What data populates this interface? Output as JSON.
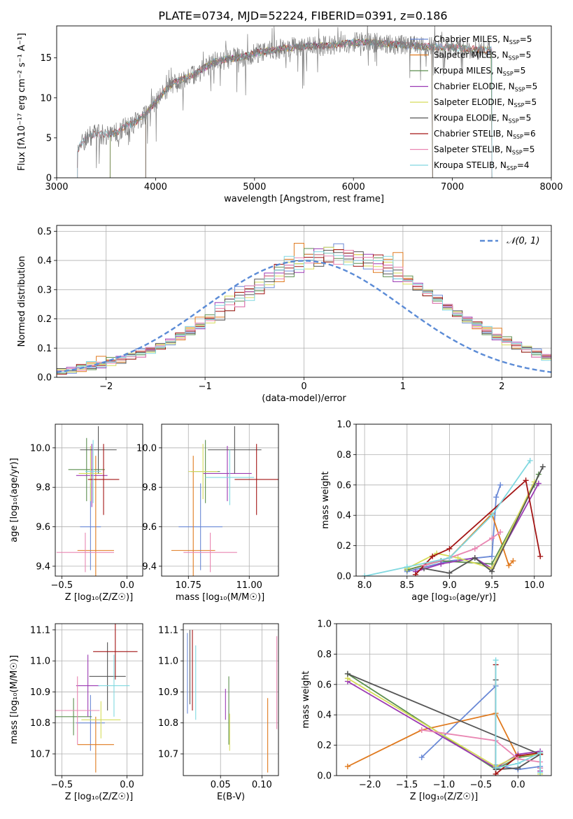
{
  "figure_title": "PLATE=0734, MJD=52224, FIBERID=0391, z=0.186",
  "palette": [
    "#6a89d6",
    "#e07a1f",
    "#5c8f4f",
    "#9b3ab3",
    "#d6dc5a",
    "#555555",
    "#a31515",
    "#e986b2",
    "#80d8e0"
  ],
  "chart_data": [
    {
      "id": "spectrum",
      "type": "line",
      "title": "PLATE=0734, MJD=52224, FIBERID=0391, z=0.186",
      "xlabel": "wavelength [Angstrom, rest frame]",
      "ylabel": "Flux [fλ10⁻¹⁷ erg cm⁻² s⁻¹ A⁻¹]",
      "xlim": [
        3000,
        8000
      ],
      "ylim": [
        0,
        19
      ],
      "xticks": [
        "3000",
        "4000",
        "5000",
        "6000",
        "7000",
        "8000"
      ],
      "yticks": [
        "0",
        "5",
        "10",
        "15"
      ],
      "grid": false,
      "legend_position": "top-right",
      "observed_spectrum": {
        "color": "#7f7f7f",
        "x": [
          3210,
          3260,
          3300,
          3400,
          3500,
          3600,
          3700,
          3800,
          3900,
          4000,
          4100,
          4200,
          4300,
          4400,
          4500,
          4600,
          4700,
          4800,
          4900,
          5000,
          5100,
          5200,
          5300,
          5400,
          5500,
          5600,
          5700,
          5800,
          5900,
          6000,
          6100,
          6200,
          6300,
          6400,
          6500,
          6600,
          6700,
          6800,
          6900,
          7000,
          7100,
          7200,
          7300,
          7400
        ],
        "y": [
          3.5,
          4.5,
          5.0,
          5.5,
          5.4,
          5.6,
          6.5,
          7.0,
          8.0,
          9.5,
          11.0,
          12.0,
          12.5,
          13.0,
          13.8,
          14.5,
          14.8,
          15.0,
          15.2,
          15.6,
          15.8,
          16.0,
          16.2,
          16.3,
          16.4,
          16.5,
          16.5,
          16.6,
          16.8,
          16.9,
          17.0,
          16.9,
          16.8,
          16.7,
          16.6,
          16.5,
          16.4,
          16.4,
          16.3,
          16.3,
          16.2,
          16.1,
          16.0,
          16.0
        ]
      },
      "series": [
        {
          "name": "Chabrier MILES, N_SSP=5",
          "x_start": 3540,
          "x_end": 7400
        },
        {
          "name": "Salpeter MILES, N_SSP=5",
          "x_start": 3540,
          "x_end": 7400
        },
        {
          "name": "Kroupa MILES, N_SSP=5",
          "x_start": 3540,
          "x_end": 7400
        },
        {
          "name": "Chabrier ELODIE, N_SSP=5",
          "x_start": 3900,
          "x_end": 6800
        },
        {
          "name": "Salpeter ELODIE, N_SSP=5",
          "x_start": 3900,
          "x_end": 6800
        },
        {
          "name": "Kroupa ELODIE, N_SSP=5",
          "x_start": 3900,
          "x_end": 6800
        },
        {
          "name": "Chabrier STELIB, N_SSP=6",
          "x_start": 3210,
          "x_end": 7400
        },
        {
          "name": "Salpeter STELIB, N_SSP=5",
          "x_start": 3210,
          "x_end": 7400
        },
        {
          "name": "Kroupa STELIB, N_SSP=4",
          "x_start": 3210,
          "x_end": 7400
        }
      ]
    },
    {
      "id": "residuals",
      "type": "bar",
      "xlabel": "(data-model)/error",
      "ylabel": "Normed distribution",
      "xlim": [
        -2.5,
        2.5
      ],
      "ylim": [
        0,
        0.52
      ],
      "xticks": [
        "−2",
        "−1",
        "0",
        "1",
        "2"
      ],
      "yticks": [
        "0.0",
        "0.1",
        "0.2",
        "0.3",
        "0.4",
        "0.5"
      ],
      "grid": true,
      "legend_position": "top-right",
      "reference_curve": {
        "name": "𝒩(0, 1)",
        "mean": 0,
        "sigma": 1,
        "color": "#5b8bd6"
      },
      "bin_edges_start": -2.5,
      "bin_width": 0.1,
      "gaussian_counts": [
        0.018,
        0.022,
        0.028,
        0.034,
        0.04,
        0.048,
        0.056,
        0.066,
        0.077,
        0.09,
        0.104,
        0.119,
        0.136,
        0.154,
        0.174,
        0.194,
        0.216,
        0.238,
        0.261,
        0.283,
        0.306,
        0.327,
        0.347,
        0.364,
        0.379,
        0.391,
        0.4,
        0.405,
        0.407,
        0.405,
        0.4,
        0.391,
        0.379,
        0.364,
        0.347,
        0.327,
        0.306,
        0.283,
        0.261,
        0.238,
        0.216,
        0.194,
        0.174,
        0.154,
        0.136,
        0.119,
        0.104,
        0.09,
        0.077,
        0.066
      ],
      "series_offsets": [
        [
          0.01,
          -0.02,
          0.02,
          0.0,
          -0.01,
          0.03,
          0.02,
          0.04,
          0.05,
          0.03
        ],
        [
          0.02,
          0.01,
          -0.02,
          0.04,
          0.08,
          0.03,
          -0.01,
          0.02,
          0.03,
          0.01
        ],
        [
          -0.01,
          0.02,
          0.03,
          -0.02,
          0.01,
          0.05,
          0.02,
          -0.01,
          0.0,
          0.02
        ],
        [
          0.0,
          0.03,
          0.01,
          0.02,
          -0.02,
          0.01,
          0.04,
          0.03,
          -0.02,
          0.01
        ],
        [
          0.02,
          -0.01,
          0.0,
          0.03,
          0.01,
          -0.02,
          0.02,
          0.04,
          0.01,
          -0.01
        ],
        [
          0.03,
          0.0,
          0.02,
          -0.01,
          0.02,
          0.01,
          -0.02,
          0.03,
          0.02,
          0.0
        ],
        [
          -0.02,
          0.02,
          0.04,
          0.01,
          0.0,
          0.02,
          0.01,
          -0.01,
          0.03,
          0.02
        ],
        [
          0.01,
          0.02,
          -0.01,
          0.02,
          0.03,
          0.0,
          0.02,
          0.01,
          -0.02,
          0.03
        ],
        [
          0.0,
          0.01,
          0.02,
          0.05,
          -0.01,
          0.01,
          0.03,
          0.02,
          0.01,
          -0.02
        ]
      ]
    },
    {
      "id": "age_vs_z",
      "type": "scatter",
      "xlabel": "Z [log₁₀(Z/Z☉)]",
      "ylabel": "age  [log₁₀(age/yr)]",
      "xlim": [
        -0.55,
        0.12
      ],
      "ylim": [
        9.35,
        10.12
      ],
      "xticks": [
        "−0.5",
        "0.0"
      ],
      "yticks": [
        "9.4",
        "9.6",
        "9.8",
        "10.0"
      ],
      "grid": true,
      "points": [
        {
          "x": -0.28,
          "xerr": 0.08,
          "y": 9.6,
          "yerr": 0.22
        },
        {
          "x": -0.24,
          "xerr": 0.14,
          "y": 9.48,
          "yerr": 0.48
        },
        {
          "x": -0.31,
          "xerr": 0.14,
          "y": 9.89,
          "yerr": 0.16
        },
        {
          "x": -0.27,
          "xerr": 0.12,
          "y": 9.86,
          "yerr": 0.16
        },
        {
          "x": -0.28,
          "xerr": 0.09,
          "y": 9.87,
          "yerr": 0.14
        },
        {
          "x": -0.22,
          "xerr": 0.14,
          "y": 9.99,
          "yerr": 0.12
        },
        {
          "x": -0.18,
          "xerr": 0.12,
          "y": 9.84,
          "yerr": 0.18
        },
        {
          "x": -0.32,
          "xerr": 0.22,
          "y": 9.47,
          "yerr": 0.1
        },
        {
          "x": -0.26,
          "xerr": 0.06,
          "y": 9.88,
          "yerr": 0.16
        }
      ]
    },
    {
      "id": "age_vs_mass",
      "type": "scatter",
      "xlabel": "mass [log₁₀(M/M☉)]",
      "ylabel": "",
      "xlim": [
        10.64,
        11.12
      ],
      "ylim": [
        9.35,
        10.12
      ],
      "xticks": [
        "10.75",
        "11.00"
      ],
      "yticks": [
        "9.4",
        "9.6",
        "9.8",
        "10.0"
      ],
      "grid": true,
      "points": [
        {
          "x": 10.8,
          "xerr": 0.09,
          "y": 9.6,
          "yerr": 0.22
        },
        {
          "x": 10.77,
          "xerr": 0.09,
          "y": 9.48,
          "yerr": 0.48
        },
        {
          "x": 10.82,
          "xerr": 0.06,
          "y": 9.88,
          "yerr": 0.16
        },
        {
          "x": 10.91,
          "xerr": 0.1,
          "y": 9.87,
          "yerr": 0.14
        },
        {
          "x": 10.81,
          "xerr": 0.06,
          "y": 9.88,
          "yerr": 0.14
        },
        {
          "x": 10.94,
          "xerr": 0.11,
          "y": 9.99,
          "yerr": 0.12
        },
        {
          "x": 11.03,
          "xerr": 0.09,
          "y": 9.84,
          "yerr": 0.18
        },
        {
          "x": 10.84,
          "xerr": 0.11,
          "y": 9.47,
          "yerr": 0.1
        },
        {
          "x": 10.92,
          "xerr": 0.1,
          "y": 9.85,
          "yerr": 0.14
        }
      ]
    },
    {
      "id": "weight_vs_age",
      "type": "line",
      "xlabel": "age  [log₁₀(age/yr)]",
      "ylabel": "mass weight",
      "xlim": [
        7.9,
        10.2
      ],
      "ylim": [
        0,
        1.0
      ],
      "xticks": [
        "8.0",
        "8.5",
        "9.0",
        "9.5",
        "10.0"
      ],
      "yticks": [
        "0.0",
        "0.2",
        "0.4",
        "0.6",
        "0.8",
        "1.0"
      ],
      "grid": true,
      "series": [
        {
          "x": [
            8.5,
            9.0,
            9.5,
            9.55,
            9.6
          ],
          "y": [
            0.03,
            0.1,
            0.13,
            0.52,
            0.6
          ]
        },
        {
          "x": [
            8.5,
            9.0,
            9.5,
            9.7,
            9.75
          ],
          "y": [
            0.04,
            0.12,
            0.41,
            0.07,
            0.1
          ]
        },
        {
          "x": [
            8.5,
            8.9,
            9.5,
            10.0,
            10.05
          ],
          "y": [
            0.04,
            0.1,
            0.08,
            0.6,
            0.67
          ]
        },
        {
          "x": [
            8.6,
            8.9,
            9.3,
            9.5,
            10.05
          ],
          "y": [
            0.03,
            0.08,
            0.12,
            0.05,
            0.61
          ]
        },
        {
          "x": [
            8.5,
            8.85,
            9.1,
            9.5,
            10.0
          ],
          "y": [
            0.05,
            0.15,
            0.12,
            0.05,
            0.62
          ]
        },
        {
          "x": [
            8.7,
            9.0,
            9.3,
            9.5,
            10.1
          ],
          "y": [
            0.05,
            0.02,
            0.12,
            0.03,
            0.72
          ]
        },
        {
          "x": [
            8.6,
            8.8,
            9.0,
            9.9,
            10.07
          ],
          "y": [
            0.01,
            0.13,
            0.18,
            0.63,
            0.13
          ]
        },
        {
          "x": [
            8.7,
            9.0,
            9.3,
            9.5,
            9.6
          ],
          "y": [
            0.07,
            0.12,
            0.18,
            0.25,
            0.29
          ]
        },
        {
          "x": [
            8.0,
            8.5,
            9.0,
            9.5,
            9.95
          ],
          "y": [
            0.0,
            0.06,
            0.12,
            0.4,
            0.76
          ]
        }
      ]
    },
    {
      "id": "mass_vs_z",
      "type": "scatter",
      "xlabel": "Z [log₁₀(Z/Z☉)]",
      "ylabel": "mass [log₁₀(M/M☉)]",
      "xlim": [
        -0.55,
        0.12
      ],
      "ylim": [
        10.63,
        11.12
      ],
      "xticks": [
        "−0.5",
        "0.0"
      ],
      "yticks": [
        "10.7",
        "10.8",
        "10.9",
        "11.0",
        "11.1"
      ],
      "grid": true,
      "points": [
        {
          "x": -0.28,
          "xerr": 0.11,
          "y": 10.8,
          "yerr": 0.09
        },
        {
          "x": -0.24,
          "xerr": 0.14,
          "y": 10.73,
          "yerr": 0.09
        },
        {
          "x": -0.41,
          "xerr": 0.14,
          "y": 10.82,
          "yerr": 0.06
        },
        {
          "x": -0.3,
          "xerr": 0.09,
          "y": 10.92,
          "yerr": 0.1
        },
        {
          "x": -0.2,
          "xerr": 0.15,
          "y": 10.81,
          "yerr": 0.06
        },
        {
          "x": -0.15,
          "xerr": 0.14,
          "y": 10.95,
          "yerr": 0.11
        },
        {
          "x": -0.09,
          "xerr": 0.17,
          "y": 11.03,
          "yerr": 0.09
        },
        {
          "x": -0.38,
          "xerr": 0.17,
          "y": 10.84,
          "yerr": 0.11
        },
        {
          "x": -0.1,
          "xerr": 0.12,
          "y": 10.92,
          "yerr": 0.1
        }
      ]
    },
    {
      "id": "mass_vs_ebv",
      "type": "scatter",
      "xlabel": "E(B-V)",
      "ylabel": "",
      "xlim": [
        0.005,
        0.12
      ],
      "ylim": [
        10.63,
        11.12
      ],
      "xticks": [
        "0.05",
        "0.10"
      ],
      "yticks": [
        "10.7",
        "10.8",
        "10.9",
        "11.0",
        "11.1"
      ],
      "grid": true,
      "points": [
        {
          "x": 0.01,
          "y": 10.96,
          "yerr": 0.13
        },
        {
          "x": 0.107,
          "y": 10.76,
          "yerr": 0.12
        },
        {
          "x": 0.06,
          "y": 10.84,
          "yerr": 0.11
        },
        {
          "x": 0.056,
          "y": 10.86,
          "yerr": 0.05
        },
        {
          "x": 0.061,
          "y": 10.77,
          "yerr": 0.06
        },
        {
          "x": 0.013,
          "y": 10.98,
          "yerr": 0.12
        },
        {
          "x": 0.016,
          "y": 10.97,
          "yerr": 0.13
        },
        {
          "x": 0.118,
          "y": 10.93,
          "yerr": 0.15
        },
        {
          "x": 0.02,
          "y": 10.93,
          "yerr": 0.12
        }
      ]
    },
    {
      "id": "weight_vs_z",
      "type": "line",
      "xlabel": "Z [log₁₀(Z/Z☉)]",
      "ylabel": "mass weight",
      "xlim": [
        -2.45,
        0.45
      ],
      "ylim": [
        0,
        1.0
      ],
      "xticks": [
        "−2.0",
        "−1.5",
        "−1.0",
        "−0.5",
        "0.0"
      ],
      "yticks": [
        "0.0",
        "0.2",
        "0.4",
        "0.6",
        "0.8",
        "1.0"
      ],
      "grid": true,
      "series": [
        {
          "x": [
            -1.3,
            -0.3,
            -0.3,
            0.0,
            0.3
          ],
          "y": [
            0.12,
            0.59,
            0.07,
            0.04,
            0.06
          ]
        },
        {
          "x": [
            -2.3,
            -1.3,
            -0.3,
            0.0,
            0.3
          ],
          "y": [
            0.06,
            0.3,
            0.41,
            0.12,
            0.14
          ]
        },
        {
          "x": [
            -2.3,
            -0.3,
            0.0,
            0.3,
            0.3
          ],
          "y": [
            0.67,
            0.04,
            0.12,
            0.14,
            0.05
          ]
        },
        {
          "x": [
            -2.3,
            -0.3,
            0.0,
            0.3,
            0.3
          ],
          "y": [
            0.62,
            0.05,
            0.14,
            0.16,
            0.03
          ]
        },
        {
          "x": [
            -2.3,
            -0.3,
            0.0,
            0.3,
            0.3
          ],
          "y": [
            0.64,
            0.06,
            0.13,
            0.14,
            0.01
          ]
        },
        {
          "x": [
            -0.3,
            -0.3,
            0.0,
            0.3,
            -2.3
          ],
          "y": [
            0.63,
            0.04,
            0.05,
            0.14,
            0.67
          ]
        },
        {
          "x": [
            -0.3,
            -0.3,
            0.0,
            0.3,
            0.3
          ],
          "y": [
            0.73,
            0.01,
            0.13,
            0.15,
            0.14
          ]
        },
        {
          "x": [
            -1.3,
            -0.3,
            0.0,
            0.3,
            0.3
          ],
          "y": [
            0.3,
            0.23,
            0.11,
            0.09,
            0.05
          ]
        },
        {
          "x": [
            -0.3,
            -0.3,
            0.0,
            0.3,
            0.3
          ],
          "y": [
            0.76,
            0.05,
            0.08,
            0.15,
            0.02
          ]
        }
      ]
    }
  ]
}
